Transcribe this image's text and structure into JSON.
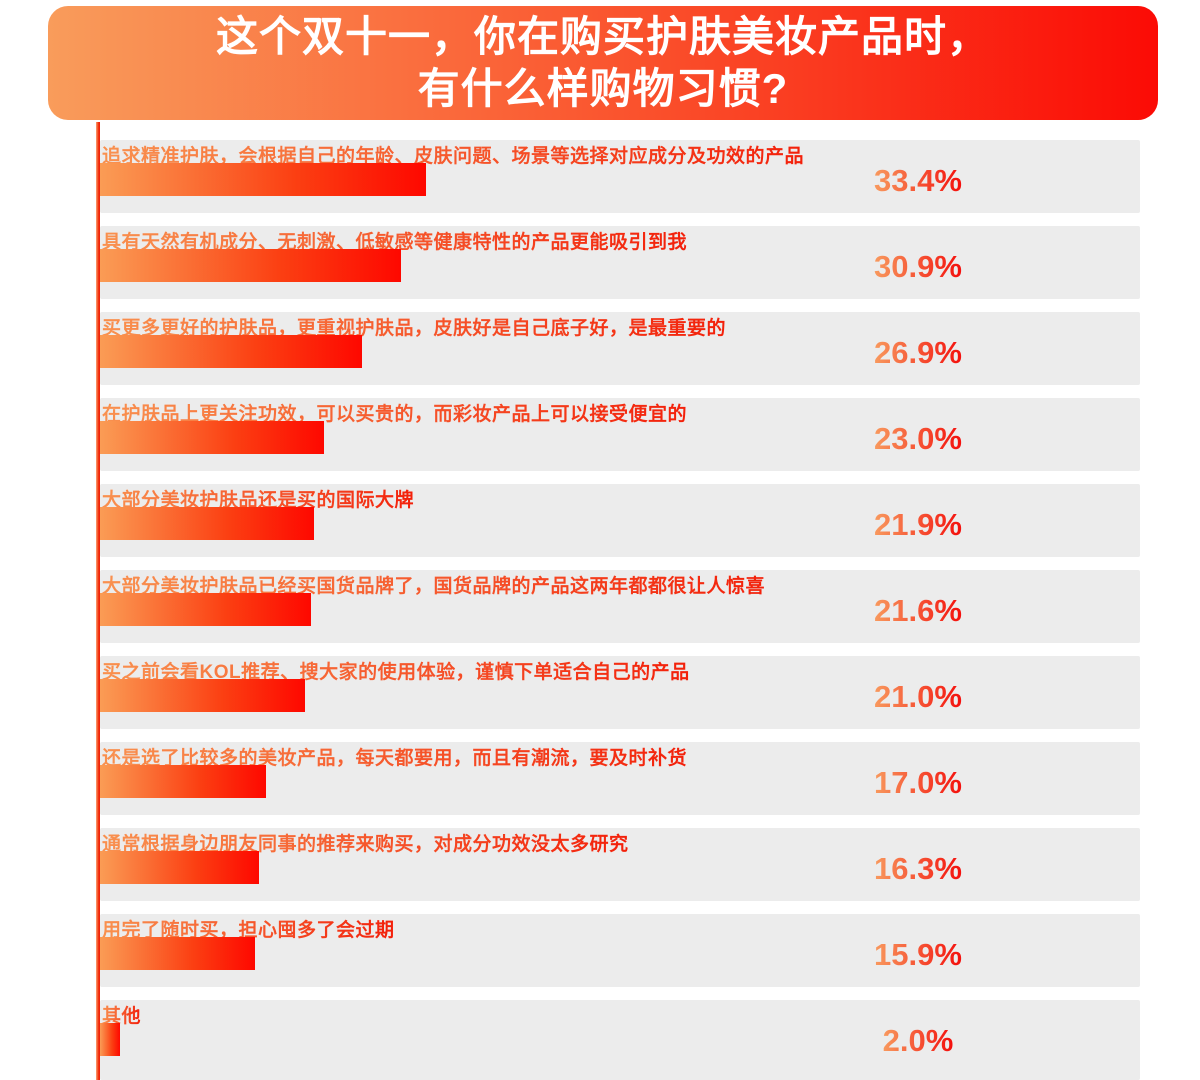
{
  "title": {
    "line1": "这个双十一，你在购买护肤美妆产品时，",
    "line2": "有什么样购物习惯?"
  },
  "colors": {
    "title_gradient_start": "#F99C5B",
    "title_gradient_end": "#FB0B05",
    "title_text": "#FFFFFF",
    "bar_gradient_start": "#FA9C55",
    "bar_gradient_end": "#FE0800",
    "label_gradient_start": "#F9914F",
    "label_gradient_end": "#F3200A",
    "value_gradient_start": "#F89A5E",
    "value_gradient_end": "#F40F0C",
    "row_background": "#ECECEC",
    "page_background": "#FFFFFF"
  },
  "chart_data": {
    "type": "bar",
    "orientation": "horizontal",
    "title": "这个双十一，你在购买护肤美妆产品时，有什么样购物习惯?",
    "categories": [
      "追求精准护肤，会根据自己的年龄、皮肤问题、场景等选择对应成分及功效的产品",
      "具有天然有机成分、无刺激、低敏感等健康特性的产品更能吸引到我",
      "买更多更好的护肤品，更重视护肤品，皮肤好是自己底子好，是最重要的",
      "在护肤品上更关注功效，可以买贵的，而彩妆产品上可以接受便宜的",
      "大部分美妆护肤品还是买的国际大牌",
      "大部分美妆护肤品已经买国货品牌了，国货品牌的产品这两年都都很让人惊喜",
      "买之前会看KOL推荐、搜大家的使用体验，谨慎下单适合自己的产品",
      "还是选了比较多的美妆产品，每天都要用，而且有潮流，要及时补货",
      "通常根据身边朋友同事的推荐来购买，对成分功效没太多研究",
      "用完了随时买，担心囤多了会过期",
      "其他"
    ],
    "values": [
      33.4,
      30.9,
      26.9,
      23.0,
      21.9,
      21.6,
      21.0,
      17.0,
      16.3,
      15.9,
      2.0
    ],
    "value_labels": [
      "33.4%",
      "30.9%",
      "26.9%",
      "23.0%",
      "21.9%",
      "21.6%",
      "21.0%",
      "17.0%",
      "16.3%",
      "15.9%",
      "2.0%"
    ],
    "xlim": [
      0,
      100
    ],
    "grid": false,
    "legend": false,
    "value_label_position": "right-of-bar-column"
  }
}
